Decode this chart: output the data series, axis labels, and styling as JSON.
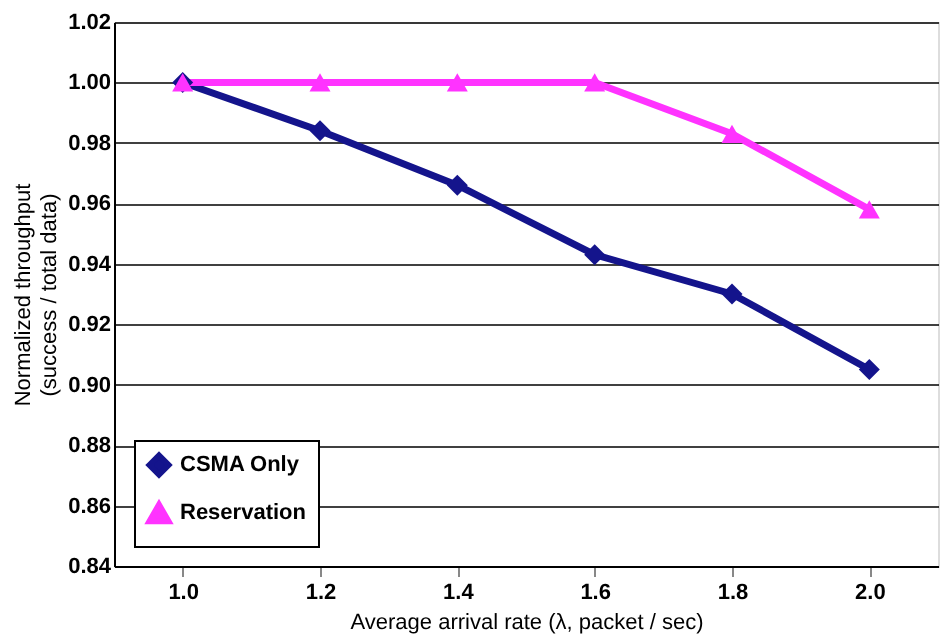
{
  "chart_data": {
    "type": "line",
    "categories": [
      "1.0",
      "1.2",
      "1.4",
      "1.6",
      "1.8",
      "2.0"
    ],
    "series": [
      {
        "name": "CSMA Only",
        "color": "#14148c",
        "marker": "diamond",
        "values": [
          1.0,
          0.984,
          0.966,
          0.943,
          0.93,
          0.905
        ]
      },
      {
        "name": "Reservation",
        "color": "#ff33ff",
        "marker": "triangle",
        "values": [
          1.0,
          1.0,
          1.0,
          1.0,
          0.983,
          0.958
        ]
      }
    ],
    "xlabel": "Average arrival rate (λ, packet / sec)",
    "ylabel": "Normalized throughput\n(success / total data)",
    "ylim": [
      0.84,
      1.02
    ],
    "yticks": [
      {
        "value": 0.84,
        "label": "0.84"
      },
      {
        "value": 0.86,
        "label": "0.86"
      },
      {
        "value": 0.88,
        "label": "0.88"
      },
      {
        "value": 0.9,
        "label": "0.90"
      },
      {
        "value": 0.92,
        "label": "0.92"
      },
      {
        "value": 0.94,
        "label": "0.94"
      },
      {
        "value": 0.96,
        "label": "0.96"
      },
      {
        "value": 0.98,
        "label": "0.98"
      },
      {
        "value": 1.0,
        "label": "1.00"
      },
      {
        "value": 1.02,
        "label": "1.02"
      }
    ],
    "grid": "y",
    "legend": "bottom left",
    "line_style": "solid"
  }
}
